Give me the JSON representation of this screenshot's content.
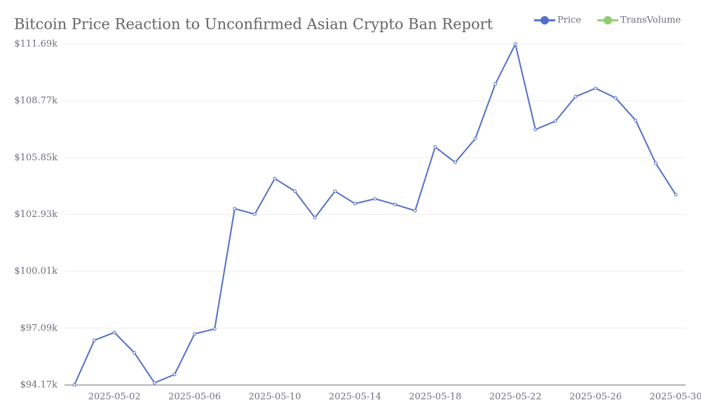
{
  "chart_data": {
    "type": "line",
    "title": "Bitcoin Price Reaction to Unconfirmed Asian Crypto Ban Report",
    "categories": [
      null,
      null,
      "2025-05-02",
      null,
      null,
      null,
      "2025-05-06",
      null,
      null,
      null,
      "2025-05-10",
      null,
      null,
      null,
      "2025-05-14",
      null,
      null,
      null,
      "2025-05-18",
      null,
      null,
      null,
      "2025-05-22",
      null,
      null,
      null,
      "2025-05-26",
      null,
      null,
      null,
      "2025-05-30"
    ],
    "series": [
      {
        "name": "Price",
        "color": "#5470c6",
        "values": [
          94.17,
          96.47,
          96.87,
          95.82,
          94.28,
          94.71,
          96.8,
          97.05,
          103.23,
          102.95,
          104.78,
          104.13,
          102.77,
          104.13,
          103.49,
          103.74,
          103.45,
          103.13,
          106.4,
          105.61,
          106.83,
          109.64,
          111.69,
          107.3,
          107.73,
          108.99,
          109.42,
          108.92,
          107.77,
          105.57,
          103.95
        ]
      },
      {
        "name": "TransVolume",
        "color": "#91cc75",
        "values": [
          null,
          null,
          null,
          null,
          null,
          null,
          null,
          null,
          null,
          null,
          null,
          null,
          null,
          null,
          null,
          null,
          null,
          null,
          null,
          null,
          null,
          null,
          null,
          null,
          null,
          null,
          null,
          null,
          null,
          null,
          null
        ]
      }
    ],
    "ylim": [
      94.17,
      111.69
    ],
    "yticks": [
      {
        "value": 94.17,
        "label": "$94.17k"
      },
      {
        "value": 97.09,
        "label": "$97.09k"
      },
      {
        "value": 100.01,
        "label": "$100.01k"
      },
      {
        "value": 102.93,
        "label": "$102.93k"
      },
      {
        "value": 105.85,
        "label": "$105.85k"
      },
      {
        "value": 108.77,
        "label": "$108.77k"
      },
      {
        "value": 111.69,
        "label": "$111.69k"
      }
    ],
    "grid": true,
    "legend": "top-right"
  }
}
